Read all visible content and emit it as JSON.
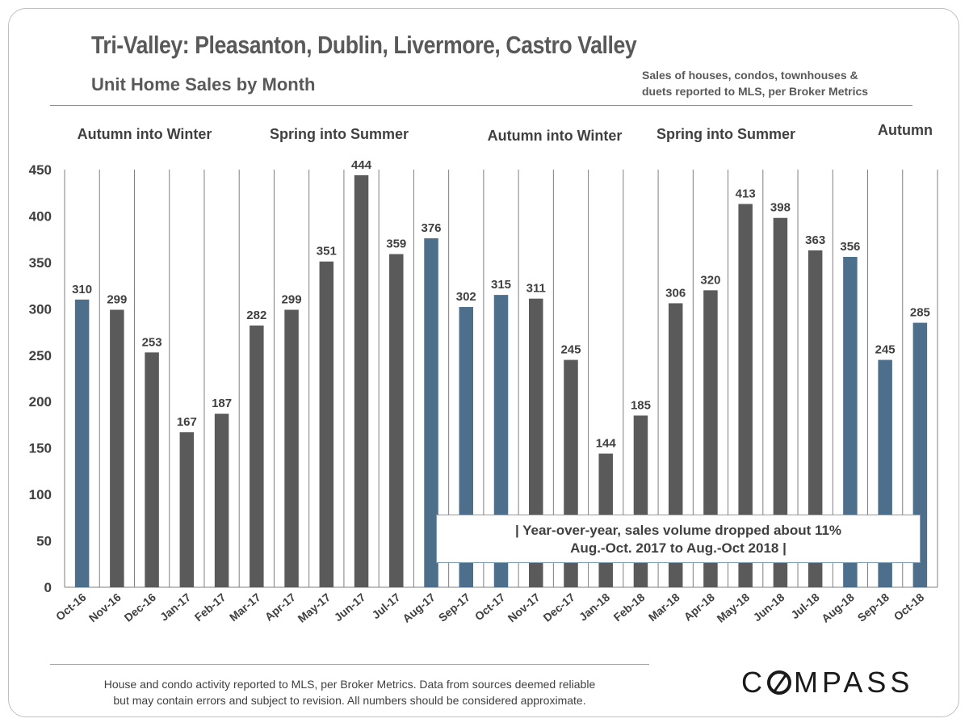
{
  "header": {
    "title": "Tri-Valley: Pleasanton, Dublin, Livermore, Castro Valley",
    "subtitle": "Unit Home Sales by Month",
    "note_line1": "Sales of houses, condos, townhouses &",
    "note_line2": "duets reported to MLS, per Broker Metrics"
  },
  "season_labels": [
    {
      "text": "Autumn into Winter",
      "category": "Dec-16"
    },
    {
      "text": "Spring into Summer",
      "category": "May-17"
    },
    {
      "text": "Autumn into Winter",
      "category": "Dec-17"
    },
    {
      "text": "Spring into Summer",
      "category": "Apr-18"
    },
    {
      "text": "Autumn",
      "category": "Sep-18"
    }
  ],
  "callout": {
    "line1": "| Year-over-year, sales volume dropped about 11%",
    "line2": "Aug.-Oct. 2017 to Aug.-Oct 2018 |"
  },
  "footer": {
    "line1": "House and condo activity reported to MLS, per Broker Metrics. Data from sources deemed reliable",
    "line2": "but may contain errors and subject to revision. All numbers should be considered approximate."
  },
  "logo_text": "COMPASS",
  "colors": {
    "gray_bar": "#5a5a5a",
    "blue_bar": "#4d6f8c",
    "text": "#404040"
  },
  "chart_data": {
    "type": "bar",
    "categories": [
      "Oct-16",
      "Nov-16",
      "Dec-16",
      "Jan-17",
      "Feb-17",
      "Mar-17",
      "Apr-17",
      "May-17",
      "Jun-17",
      "Jul-17",
      "Aug-17",
      "Sep-17",
      "Oct-17",
      "Nov-17",
      "Dec-17",
      "Jan-18",
      "Feb-18",
      "Mar-18",
      "Apr-18",
      "May-18",
      "Jun-18",
      "Jul-18",
      "Aug-18",
      "Sep-18",
      "Oct-18"
    ],
    "values": [
      310,
      299,
      253,
      167,
      187,
      282,
      299,
      351,
      444,
      359,
      376,
      302,
      315,
      311,
      245,
      144,
      185,
      306,
      320,
      413,
      398,
      363,
      356,
      245,
      285
    ],
    "highlight": [
      true,
      false,
      false,
      false,
      false,
      false,
      false,
      false,
      false,
      false,
      true,
      true,
      true,
      false,
      false,
      false,
      false,
      false,
      false,
      false,
      false,
      false,
      true,
      true,
      true
    ],
    "ylim": [
      0,
      450
    ],
    "yticks": [
      0,
      50,
      100,
      150,
      200,
      250,
      300,
      350,
      400,
      450
    ],
    "grid": "vertical",
    "data_labels": true
  }
}
